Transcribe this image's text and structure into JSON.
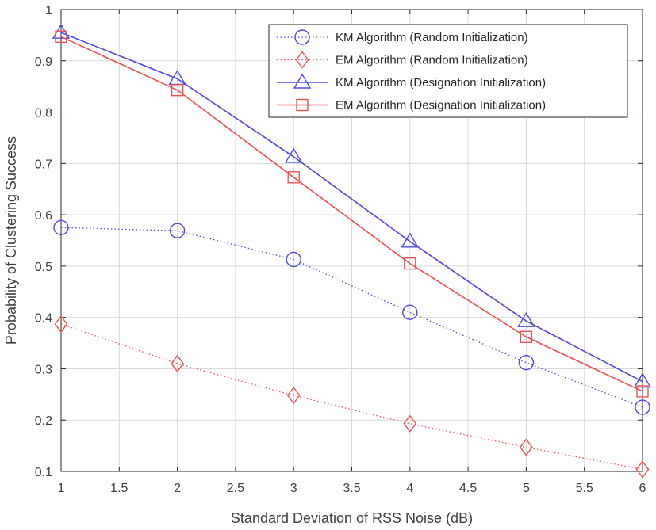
{
  "chart_data": {
    "type": "line",
    "title": "",
    "xlabel": "Standard Deviation of RSS Noise (dB)",
    "ylabel": "Probability of Clustering Success",
    "xlim": [
      1,
      6
    ],
    "ylim": [
      0.1,
      1
    ],
    "x_ticks": [
      "1",
      "1.5",
      "2",
      "2.5",
      "3",
      "3.5",
      "4",
      "4.5",
      "5",
      "5.5",
      "6"
    ],
    "y_ticks": [
      "0.1",
      "0.2",
      "0.3",
      "0.4",
      "0.5",
      "0.6",
      "0.7",
      "0.8",
      "0.9",
      "1"
    ],
    "grid": true,
    "legend_position": "top-right",
    "x": [
      1,
      2,
      3,
      4,
      5,
      6
    ],
    "series": [
      {
        "name": "KM Algorithm (Random Initialization)",
        "values": [
          0.575,
          0.569,
          0.513,
          0.41,
          0.312,
          0.225
        ],
        "color": "#4a4ae8",
        "line_style": "dotted",
        "marker": "circle"
      },
      {
        "name": "EM Algorithm (Random Initialization)",
        "values": [
          0.387,
          0.31,
          0.248,
          0.193,
          0.147,
          0.104
        ],
        "color": "#f05050",
        "line_style": "dotted",
        "marker": "diamond"
      },
      {
        "name": "KM Algorithm (Designation Initialization)",
        "values": [
          0.955,
          0.865,
          0.713,
          0.548,
          0.393,
          0.275
        ],
        "color": "#4a4ae8",
        "line_style": "solid",
        "marker": "triangle"
      },
      {
        "name": "EM Algorithm (Designation Initialization)",
        "values": [
          0.947,
          0.843,
          0.673,
          0.505,
          0.362,
          0.256
        ],
        "color": "#f05050",
        "line_style": "solid",
        "marker": "square"
      }
    ]
  }
}
